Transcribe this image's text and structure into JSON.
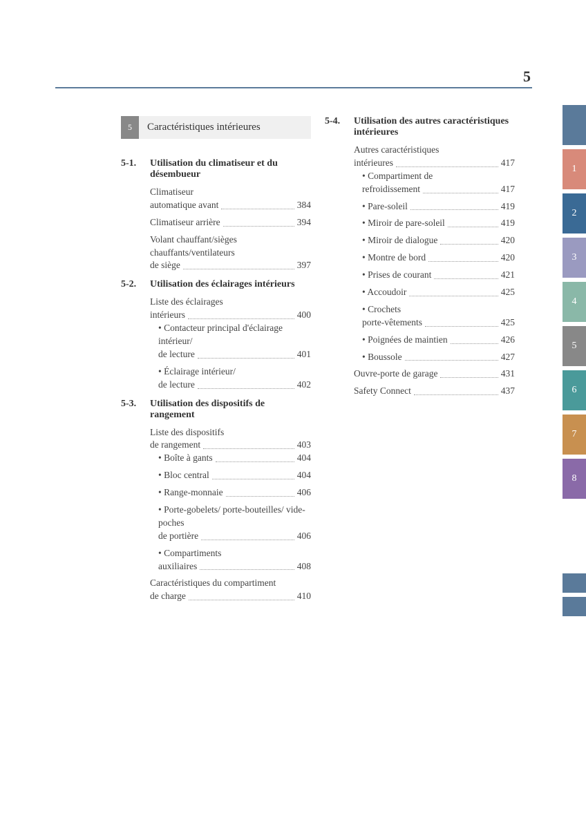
{
  "page_number": "5",
  "chapter": {
    "num": "5",
    "title": "Caractéristiques intérieures"
  },
  "header_rule_color": "#5a7a9a",
  "chapter_box_colors": {
    "num_bg": "#888888",
    "title_bg": "#f0f0f0"
  },
  "fontsize": {
    "page_number": 22,
    "chapter_title": 15,
    "section_header": 14,
    "entry": 13.5
  },
  "left_sections": [
    {
      "num": "5-1.",
      "title": "Utilisation du climatiseur et du désembueur",
      "entries": [
        {
          "label": "Climatiseur automatique avant",
          "page": "384",
          "multiline": true
        },
        {
          "label": "Climatiseur arrière",
          "page": "394"
        },
        {
          "label": "Volant chauffant/sièges chauffants/ventilateurs de siège",
          "page": "397",
          "multiline": true
        }
      ]
    },
    {
      "num": "5-2.",
      "title": "Utilisation des éclairages intérieurs",
      "entries": [
        {
          "label": "Liste des éclairages intérieurs",
          "page": "400",
          "multiline": true,
          "subs": [
            {
              "label": "Contacteur principal d'éclairage intérieur/ de lecture",
              "page": "401",
              "multiline": true
            },
            {
              "label": "Éclairage intérieur/ de lecture",
              "page": "402",
              "multiline": true
            }
          ]
        }
      ]
    },
    {
      "num": "5-3.",
      "title": "Utilisation des dispositifs de rangement",
      "entries": [
        {
          "label": "Liste des dispositifs de rangement",
          "page": "403",
          "multiline": true,
          "subs": [
            {
              "label": "Boîte à gants",
              "page": "404"
            },
            {
              "label": "Bloc central",
              "page": "404"
            },
            {
              "label": "Range-monnaie",
              "page": "406"
            },
            {
              "label": "Porte-gobelets/ porte-bouteilles/ vide-poches de portière",
              "page": "406",
              "multiline": true
            },
            {
              "label": "Compartiments auxiliaires",
              "page": "408",
              "multiline": true
            }
          ]
        },
        {
          "label": "Caractéristiques du compartiment de charge",
          "page": "410",
          "multiline": true
        }
      ]
    }
  ],
  "right_sections": [
    {
      "num": "5-4.",
      "title": "Utilisation des autres caractéristiques intérieures",
      "entries": [
        {
          "label": "Autres caractéristiques intérieures",
          "page": "417",
          "multiline": true,
          "subs": [
            {
              "label": "Compartiment de refroidissement",
              "page": "417",
              "multiline": true
            },
            {
              "label": "Pare-soleil",
              "page": "419"
            },
            {
              "label": "Miroir de pare-soleil",
              "page": "419"
            },
            {
              "label": "Miroir de dialogue",
              "page": "420"
            },
            {
              "label": "Montre de bord",
              "page": "420"
            },
            {
              "label": "Prises de courant",
              "page": "421"
            },
            {
              "label": "Accoudoir",
              "page": "425"
            },
            {
              "label": "Crochets porte-vêtements",
              "page": "425",
              "multiline": true
            },
            {
              "label": "Poignées de maintien",
              "page": "426"
            },
            {
              "label": "Boussole",
              "page": "427"
            }
          ]
        },
        {
          "label": "Ouvre-porte de garage",
          "page": "431"
        },
        {
          "label": "Safety Connect",
          "page": "437"
        }
      ]
    }
  ],
  "side_tabs": [
    {
      "label": "",
      "color": "#5a7a9a"
    },
    {
      "label": "1",
      "color": "#d88a7a"
    },
    {
      "label": "2",
      "color": "#3a6a95"
    },
    {
      "label": "3",
      "color": "#9a9ac0"
    },
    {
      "label": "4",
      "color": "#8ab8a8"
    },
    {
      "label": "5",
      "color": "#888888"
    },
    {
      "label": "6",
      "color": "#4a9a9a"
    },
    {
      "label": "7",
      "color": "#c89050"
    },
    {
      "label": "8",
      "color": "#8a6aa8"
    }
  ],
  "extra_tabs": [
    {
      "color": "#5a7a9a"
    },
    {
      "color": "#5a7a9a"
    }
  ]
}
